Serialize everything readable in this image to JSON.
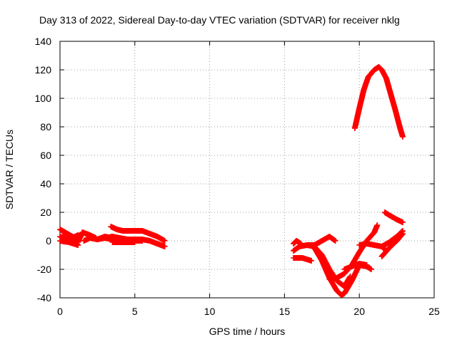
{
  "chart_data": {
    "type": "scatter",
    "title": "Day 313 of 2022, Sidereal Day-to-day VTEC variation (SDTVAR) for receiver nklg",
    "xlabel": "GPS time / hours",
    "ylabel": "SDTVAR / TECUs",
    "xlim": [
      0,
      25
    ],
    "ylim": [
      -40,
      140
    ],
    "xticks": [
      0,
      5,
      10,
      15,
      20,
      25
    ],
    "yticks": [
      -40,
      -20,
      0,
      20,
      40,
      60,
      80,
      100,
      120,
      140
    ],
    "grid": true,
    "legend": "none",
    "marker": "plus",
    "color": "#ff0000",
    "series": [
      {
        "segments": [
          {
            "x": [
              0.0,
              0.5,
              1.0,
              1.2
            ],
            "y": [
              8,
              5,
              2,
              0
            ]
          },
          {
            "x": [
              0.0,
              0.5,
              1.0,
              1.2
            ],
            "y": [
              3,
              1,
              -1,
              -3
            ]
          },
          {
            "x": [
              0.0,
              0.6,
              1.2
            ],
            "y": [
              0,
              -1,
              -3
            ]
          },
          {
            "x": [
              0.2,
              0.8,
              1.2,
              1.4
            ],
            "y": [
              4,
              2,
              4,
              3
            ]
          },
          {
            "x": [
              1.2,
              1.5,
              2.0,
              2.4
            ],
            "y": [
              -1,
              6,
              4,
              2
            ]
          },
          {
            "x": [
              1.6,
              2.0,
              2.5,
              3.0,
              3.5
            ],
            "y": [
              0,
              2,
              1,
              3,
              2
            ]
          },
          {
            "x": [
              2.5,
              3.0,
              3.5,
              4.0,
              4.5,
              5.0,
              5.5,
              6.0,
              6.5,
              7.0
            ],
            "y": [
              1,
              2,
              3,
              2,
              1,
              1,
              1,
              0,
              -2,
              -4
            ]
          },
          {
            "x": [
              3.4,
              3.8,
              4.2,
              4.5,
              5.0,
              5.5,
              6.0,
              6.5,
              7.0
            ],
            "y": [
              10,
              8,
              7,
              7,
              7,
              7,
              5,
              3,
              0
            ]
          },
          {
            "x": [
              3.0,
              3.5,
              4.0,
              4.5,
              5.0,
              5.5
            ],
            "y": [
              2,
              1,
              1,
              0,
              0,
              0
            ]
          },
          {
            "x": [
              3.5,
              4.0,
              4.5,
              5.0
            ],
            "y": [
              -1,
              -1,
              -1,
              -1
            ]
          },
          {
            "x": [
              15.6,
              15.8,
              16.1
            ],
            "y": [
              -2,
              0,
              -2
            ]
          },
          {
            "x": [
              15.6,
              16.0,
              16.5,
              17.0,
              17.5,
              18.0,
              18.4
            ],
            "y": [
              -7,
              -4,
              -3,
              -3,
              0,
              3,
              0
            ]
          },
          {
            "x": [
              15.6,
              16.2,
              16.8
            ],
            "y": [
              -12,
              -12,
              -14
            ]
          },
          {
            "x": [
              16.5,
              17.0,
              17.5,
              18.0,
              18.5,
              19.0,
              19.4
            ],
            "y": [
              -3,
              -4,
              -10,
              -20,
              -28,
              -32,
              -25
            ]
          },
          {
            "x": [
              17.0,
              17.5,
              18.0,
              18.5,
              18.8,
              19.0,
              19.5,
              20.0,
              20.5,
              20.8
            ],
            "y": [
              -5,
              -14,
              -26,
              -35,
              -38,
              -37,
              -28,
              -17,
              -18,
              -20
            ]
          },
          {
            "x": [
              18.0,
              18.5,
              19.0,
              19.5,
              20.0,
              20.5,
              21.0,
              21.2
            ],
            "y": [
              -27,
              -26,
              -23,
              -17,
              -8,
              0,
              6,
              11
            ]
          },
          {
            "x": [
              19.0,
              19.5,
              20.0,
              20.5
            ],
            "y": [
              -20,
              -18,
              -16,
              -17
            ]
          },
          {
            "x": [
              20.0,
              20.5,
              21.0,
              21.5,
              21.8
            ],
            "y": [
              -3,
              -2,
              -3,
              -4,
              -7
            ]
          },
          {
            "x": [
              21.5,
              22.0,
              22.5,
              22.9
            ],
            "y": [
              -11,
              -5,
              0,
              5
            ]
          },
          {
            "x": [
              21.5,
              22.0,
              22.5,
              22.9
            ],
            "y": [
              -4,
              -1,
              3,
              7
            ]
          },
          {
            "x": [
              21.7,
              22.0,
              22.5,
              22.9
            ],
            "y": [
              20,
              18,
              15,
              13
            ]
          },
          {
            "x": [
              19.7,
              20.0,
              20.3,
              20.6,
              21.0,
              21.3,
              21.5,
              21.8,
              22.1,
              22.4,
              22.7,
              22.9
            ],
            "y": [
              79,
              93,
              106,
              115,
              120,
              122,
              120,
              114,
              103,
              92,
              80,
              73
            ]
          }
        ]
      }
    ]
  }
}
